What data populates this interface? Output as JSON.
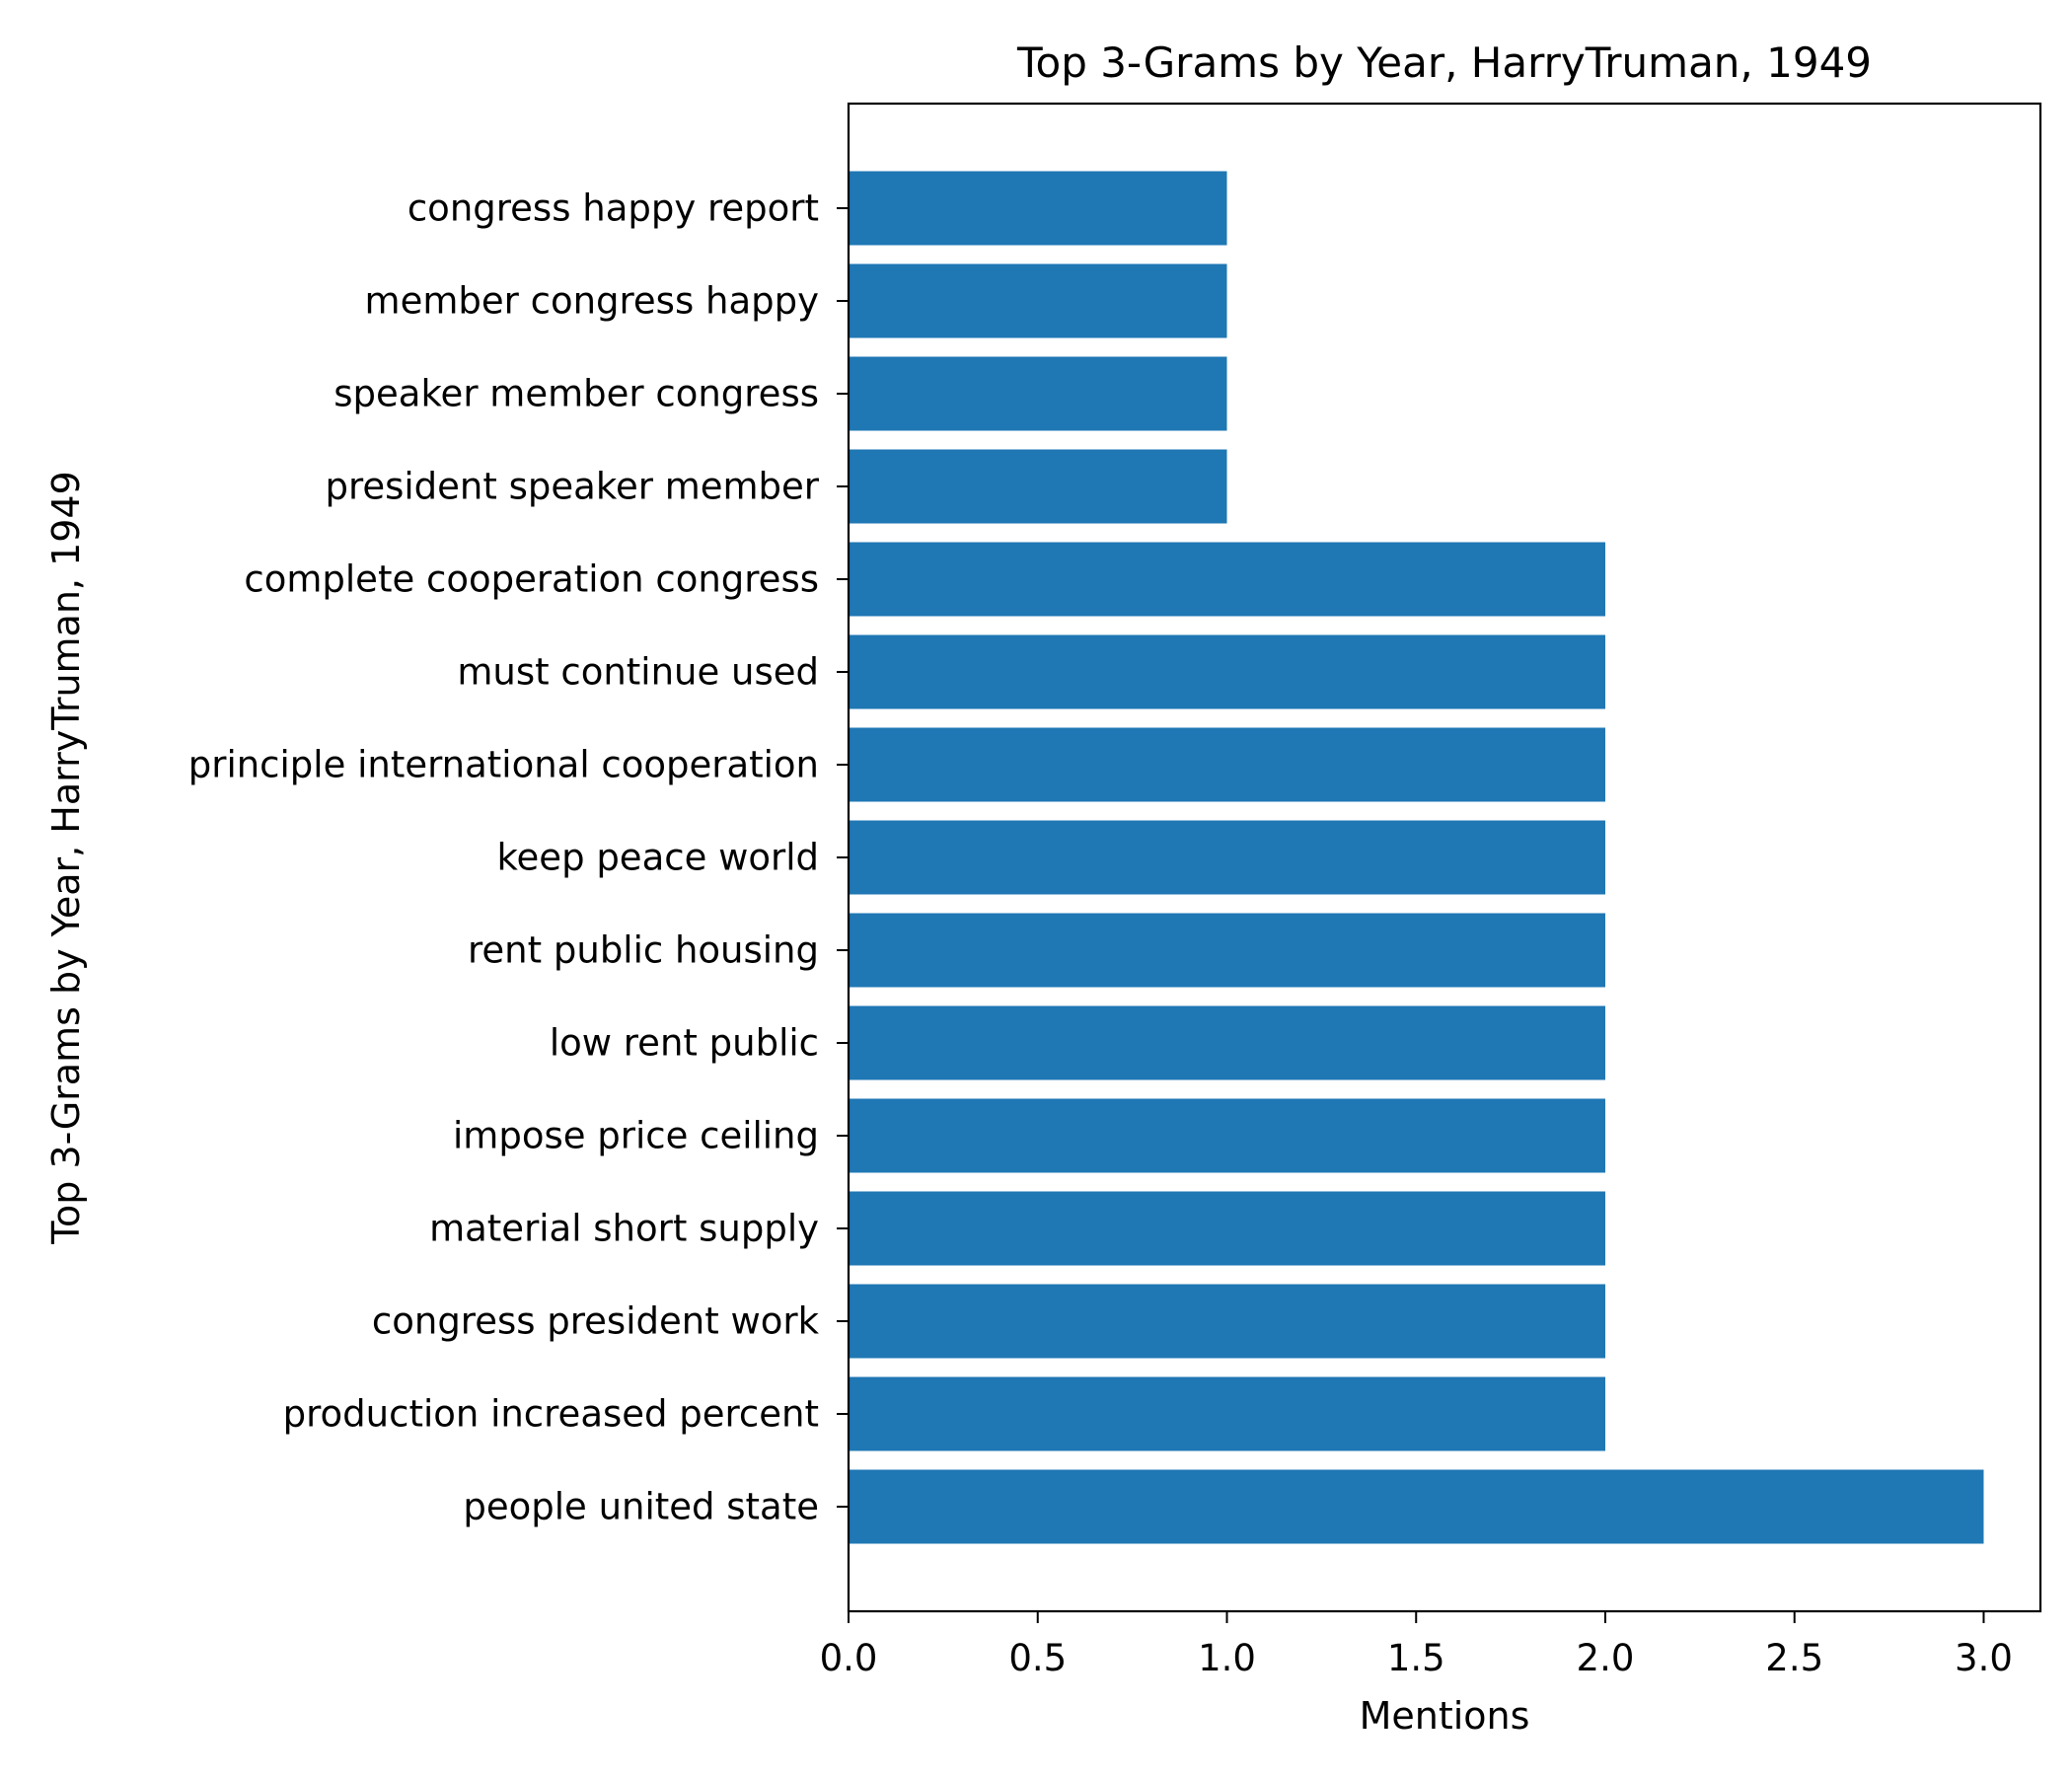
{
  "chart_data": {
    "type": "bar",
    "orientation": "horizontal",
    "title": "Top 3-Grams by Year, HarryTruman, 1949",
    "xlabel": "Mentions",
    "ylabel": "Top 3-Grams by Year, HarryTruman, 1949",
    "xlim": [
      0,
      3.15
    ],
    "xticks": [
      "0.0",
      "0.5",
      "1.0",
      "1.5",
      "2.0",
      "2.5",
      "3.0"
    ],
    "xtick_values": [
      0,
      0.5,
      1,
      1.5,
      2,
      2.5,
      3
    ],
    "grid": false,
    "legend": "none",
    "bar_color": "#1f77b4",
    "categories": [
      "people united state",
      "production increased percent",
      "congress president work",
      "material short supply",
      "impose price ceiling",
      "low rent public",
      "rent public housing",
      "keep peace world",
      "principle international cooperation",
      "must continue used",
      "complete cooperation congress",
      "president speaker member",
      "speaker member congress",
      "member congress happy",
      "congress happy report"
    ],
    "values": [
      3,
      2,
      2,
      2,
      2,
      2,
      2,
      2,
      2,
      2,
      2,
      1,
      1,
      1,
      1
    ]
  }
}
